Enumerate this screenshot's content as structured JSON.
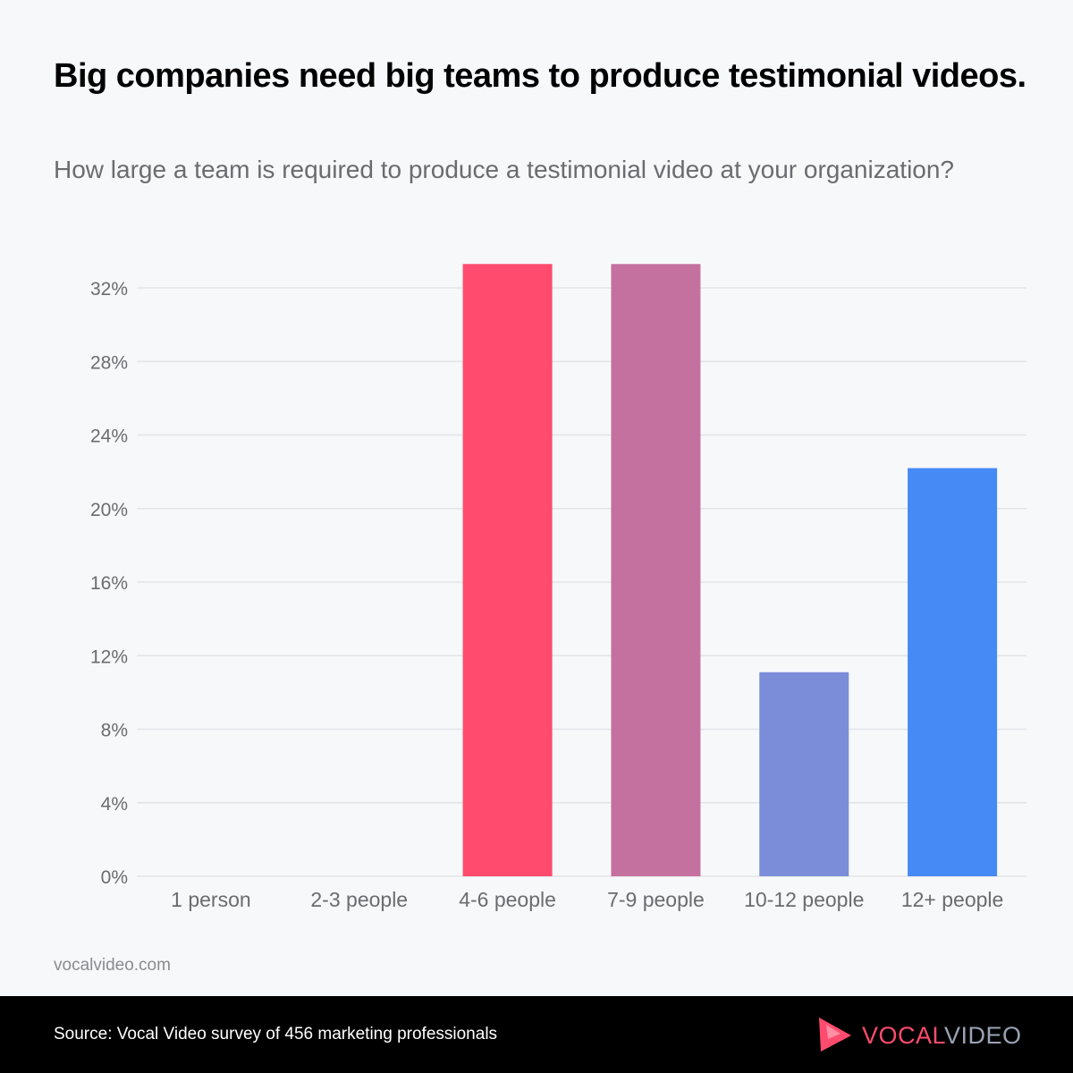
{
  "chart_data": {
    "type": "bar",
    "title": "Big companies need big teams to produce testimonial videos.",
    "subtitle": "How large a team is required to produce a testimonial video at your organization?",
    "categories": [
      "1 person",
      "2-3 people",
      "4-6 people",
      "7-9 people",
      "10-12 people",
      "12+ people"
    ],
    "values": [
      0,
      0,
      33.3,
      33.3,
      11.1,
      22.2
    ],
    "colors": [
      "#ff4b6e",
      "#ff4b6e",
      "#ff4b6e",
      "#c5719f",
      "#7b8dd9",
      "#468af5"
    ],
    "yticks": [
      "0%",
      "4%",
      "8%",
      "12%",
      "16%",
      "20%",
      "24%",
      "28%",
      "32%"
    ],
    "ylim": [
      0,
      32
    ],
    "xlabel": "",
    "ylabel": "",
    "grid": true
  },
  "site": "vocalvideo.com",
  "footer": {
    "source": "Source: Vocal Video survey of 456 marketing professionals",
    "logo_text": "VOCALVIDEO"
  }
}
